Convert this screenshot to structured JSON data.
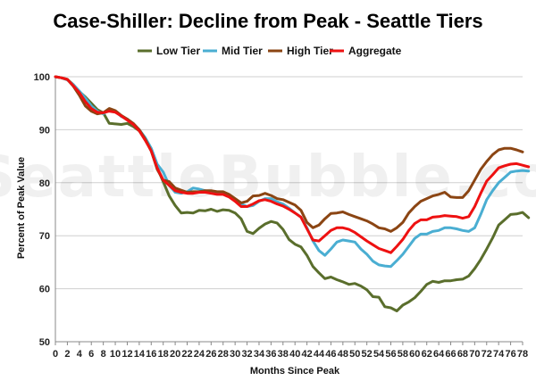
{
  "watermark": "SeattleBubble.com",
  "chart_data": {
    "type": "line",
    "title": "Case-Shiller: Decline from Peak - Seattle Tiers",
    "xlabel": "Months Since Peak",
    "ylabel": "Percent of Peak Value",
    "xlim": [
      0,
      78
    ],
    "ylim": [
      50,
      100
    ],
    "yticks": [
      50,
      60,
      70,
      80,
      90,
      100
    ],
    "xticks": [
      0,
      2,
      4,
      6,
      8,
      10,
      12,
      14,
      16,
      18,
      20,
      22,
      24,
      26,
      28,
      30,
      32,
      34,
      36,
      38,
      40,
      42,
      44,
      46,
      48,
      50,
      52,
      54,
      56,
      58,
      60,
      62,
      64,
      66,
      68,
      70,
      72,
      74,
      76,
      78
    ],
    "grid": "horizontal",
    "legend": "top",
    "series": [
      {
        "name": "Low Tier",
        "color": "#5a6e2c",
        "values": [
          [
            0,
            100
          ],
          [
            1,
            99.8
          ],
          [
            2,
            99.5
          ],
          [
            3,
            98.5
          ],
          [
            4,
            97.2
          ],
          [
            5,
            96.2
          ],
          [
            6,
            95
          ],
          [
            7,
            93.8
          ],
          [
            8,
            93.2
          ],
          [
            9,
            91.2
          ],
          [
            10,
            91.1
          ],
          [
            11,
            91
          ],
          [
            12,
            91.2
          ],
          [
            13,
            90.6
          ],
          [
            14,
            89.8
          ],
          [
            15,
            88.2
          ],
          [
            16,
            86
          ],
          [
            17,
            82.8
          ],
          [
            18,
            80.2
          ],
          [
            19,
            77.5
          ],
          [
            20,
            75.7
          ],
          [
            21,
            74.3
          ],
          [
            22,
            74.4
          ],
          [
            23,
            74.3
          ],
          [
            24,
            74.8
          ],
          [
            25,
            74.7
          ],
          [
            26,
            75
          ],
          [
            27,
            74.6
          ],
          [
            28,
            74.9
          ],
          [
            29,
            74.8
          ],
          [
            30,
            74.3
          ],
          [
            31,
            73.2
          ],
          [
            32,
            70.8
          ],
          [
            33,
            70.4
          ],
          [
            34,
            71.4
          ],
          [
            35,
            72.2
          ],
          [
            36,
            72.7
          ],
          [
            37,
            72.4
          ],
          [
            38,
            71.2
          ],
          [
            39,
            69.3
          ],
          [
            40,
            68.4
          ],
          [
            41,
            67.9
          ],
          [
            42,
            66.3
          ],
          [
            43,
            64.2
          ],
          [
            44,
            63
          ],
          [
            45,
            61.9
          ],
          [
            46,
            62.2
          ],
          [
            47,
            61.7
          ],
          [
            48,
            61.3
          ],
          [
            49,
            60.8
          ],
          [
            50,
            61
          ],
          [
            51,
            60.5
          ],
          [
            52,
            59.8
          ],
          [
            53,
            58.5
          ],
          [
            54,
            58.4
          ],
          [
            55,
            56.6
          ],
          [
            56,
            56.4
          ],
          [
            57,
            55.8
          ],
          [
            58,
            56.9
          ],
          [
            59,
            57.5
          ],
          [
            60,
            58.3
          ],
          [
            61,
            59.5
          ],
          [
            62,
            60.8
          ],
          [
            63,
            61.4
          ],
          [
            64,
            61.2
          ],
          [
            65,
            61.5
          ],
          [
            66,
            61.5
          ],
          [
            67,
            61.7
          ],
          [
            68,
            61.8
          ],
          [
            69,
            62.4
          ],
          [
            70,
            63.8
          ],
          [
            71,
            65.5
          ],
          [
            72,
            67.5
          ],
          [
            73,
            69.6
          ],
          [
            74,
            72
          ],
          [
            75,
            73
          ],
          [
            76,
            74
          ],
          [
            77,
            74.1
          ],
          [
            78,
            74.4
          ],
          [
            79,
            73.4
          ]
        ]
      },
      {
        "name": "Mid Tier",
        "color": "#4aaed2",
        "values": [
          [
            0,
            100
          ],
          [
            1,
            99.8
          ],
          [
            2,
            99.4
          ],
          [
            3,
            98.5
          ],
          [
            4,
            97.3
          ],
          [
            5,
            96
          ],
          [
            6,
            94.5
          ],
          [
            7,
            93.5
          ],
          [
            8,
            93
          ],
          [
            9,
            93.8
          ],
          [
            10,
            93.5
          ],
          [
            11,
            92.5
          ],
          [
            12,
            92
          ],
          [
            13,
            91
          ],
          [
            14,
            90
          ],
          [
            15,
            88.5
          ],
          [
            16,
            86.5
          ],
          [
            17,
            83.5
          ],
          [
            18,
            82
          ],
          [
            19,
            79.5
          ],
          [
            20,
            78.2
          ],
          [
            21,
            78
          ],
          [
            22,
            78.3
          ],
          [
            23,
            79
          ],
          [
            24,
            78.8
          ],
          [
            25,
            78.5
          ],
          [
            26,
            78.3
          ],
          [
            27,
            78.2
          ],
          [
            28,
            78
          ],
          [
            29,
            77.5
          ],
          [
            30,
            76.8
          ],
          [
            31,
            76
          ],
          [
            32,
            75.5
          ],
          [
            33,
            75.7
          ],
          [
            34,
            76.5
          ],
          [
            35,
            77
          ],
          [
            36,
            77
          ],
          [
            37,
            76.4
          ],
          [
            38,
            76
          ],
          [
            39,
            75.2
          ],
          [
            40,
            74.3
          ],
          [
            41,
            73.5
          ],
          [
            42,
            71.5
          ],
          [
            43,
            69
          ],
          [
            44,
            67.2
          ],
          [
            45,
            66.3
          ],
          [
            46,
            67.5
          ],
          [
            47,
            68.8
          ],
          [
            48,
            69.2
          ],
          [
            49,
            69
          ],
          [
            50,
            68.8
          ],
          [
            51,
            67.5
          ],
          [
            52,
            66.5
          ],
          [
            53,
            65.2
          ],
          [
            54,
            64.5
          ],
          [
            55,
            64.3
          ],
          [
            56,
            64.2
          ],
          [
            57,
            65.3
          ],
          [
            58,
            66.5
          ],
          [
            59,
            68
          ],
          [
            60,
            69.5
          ],
          [
            61,
            70.3
          ],
          [
            62,
            70.3
          ],
          [
            63,
            70.8
          ],
          [
            64,
            71
          ],
          [
            65,
            71.5
          ],
          [
            66,
            71.5
          ],
          [
            67,
            71.3
          ],
          [
            68,
            71
          ],
          [
            69,
            70.8
          ],
          [
            70,
            71.5
          ],
          [
            71,
            74
          ],
          [
            72,
            76.8
          ],
          [
            73,
            78.5
          ],
          [
            74,
            80
          ],
          [
            75,
            81
          ],
          [
            76,
            82
          ],
          [
            77,
            82.2
          ],
          [
            78,
            82.3
          ],
          [
            79,
            82.2
          ]
        ]
      },
      {
        "name": "High Tier",
        "color": "#8b4513",
        "values": [
          [
            0,
            100
          ],
          [
            1,
            99.8
          ],
          [
            2,
            99.5
          ],
          [
            3,
            98.2
          ],
          [
            4,
            96.5
          ],
          [
            5,
            94.5
          ],
          [
            6,
            93.5
          ],
          [
            7,
            93
          ],
          [
            8,
            93.2
          ],
          [
            9,
            94
          ],
          [
            10,
            93.6
          ],
          [
            11,
            92.7
          ],
          [
            12,
            92
          ],
          [
            13,
            91.2
          ],
          [
            14,
            90
          ],
          [
            15,
            88.2
          ],
          [
            16,
            86
          ],
          [
            17,
            82.5
          ],
          [
            18,
            80.5
          ],
          [
            19,
            80.2
          ],
          [
            20,
            79
          ],
          [
            21,
            78.6
          ],
          [
            22,
            78.2
          ],
          [
            23,
            78.3
          ],
          [
            24,
            78.3
          ],
          [
            25,
            78.5
          ],
          [
            26,
            78.5
          ],
          [
            27,
            78.3
          ],
          [
            28,
            78.3
          ],
          [
            29,
            77.8
          ],
          [
            30,
            77
          ],
          [
            31,
            76.2
          ],
          [
            32,
            76.5
          ],
          [
            33,
            77.5
          ],
          [
            34,
            77.6
          ],
          [
            35,
            78
          ],
          [
            36,
            77.6
          ],
          [
            37,
            77
          ],
          [
            38,
            76.8
          ],
          [
            39,
            76.3
          ],
          [
            40,
            75.8
          ],
          [
            41,
            74.8
          ],
          [
            42,
            72.5
          ],
          [
            43,
            71.5
          ],
          [
            44,
            72
          ],
          [
            45,
            73.2
          ],
          [
            46,
            74.2
          ],
          [
            47,
            74.3
          ],
          [
            48,
            74.5
          ],
          [
            49,
            74
          ],
          [
            50,
            73.6
          ],
          [
            51,
            73.2
          ],
          [
            52,
            72.8
          ],
          [
            53,
            72.2
          ],
          [
            54,
            71.5
          ],
          [
            55,
            71.3
          ],
          [
            56,
            70.8
          ],
          [
            57,
            71.5
          ],
          [
            58,
            72.5
          ],
          [
            59,
            74.3
          ],
          [
            60,
            75.5
          ],
          [
            61,
            76.5
          ],
          [
            62,
            77
          ],
          [
            63,
            77.5
          ],
          [
            64,
            77.8
          ],
          [
            65,
            78.2
          ],
          [
            66,
            77.3
          ],
          [
            67,
            77.2
          ],
          [
            68,
            77.2
          ],
          [
            69,
            78.5
          ],
          [
            70,
            80.5
          ],
          [
            71,
            82.5
          ],
          [
            72,
            84
          ],
          [
            73,
            85.3
          ],
          [
            74,
            86.2
          ],
          [
            75,
            86.5
          ],
          [
            76,
            86.5
          ],
          [
            77,
            86.2
          ],
          [
            78,
            85.8
          ]
        ]
      },
      {
        "name": "Aggregate",
        "color": "#ee1111",
        "values": [
          [
            0,
            100
          ],
          [
            1,
            99.8
          ],
          [
            2,
            99.5
          ],
          [
            3,
            98.3
          ],
          [
            4,
            97
          ],
          [
            5,
            95.3
          ],
          [
            6,
            94
          ],
          [
            7,
            93.3
          ],
          [
            8,
            93.2
          ],
          [
            9,
            93.5
          ],
          [
            10,
            93.3
          ],
          [
            11,
            92.6
          ],
          [
            12,
            91.8
          ],
          [
            13,
            91
          ],
          [
            14,
            89.8
          ],
          [
            15,
            88
          ],
          [
            16,
            86
          ],
          [
            17,
            82.8
          ],
          [
            18,
            80.5
          ],
          [
            19,
            79.5
          ],
          [
            20,
            78.5
          ],
          [
            21,
            78.2
          ],
          [
            22,
            78
          ],
          [
            23,
            78
          ],
          [
            24,
            78.2
          ],
          [
            25,
            78.2
          ],
          [
            26,
            78
          ],
          [
            27,
            77.8
          ],
          [
            28,
            77.8
          ],
          [
            29,
            77.3
          ],
          [
            30,
            76.5
          ],
          [
            31,
            75.5
          ],
          [
            32,
            75.5
          ],
          [
            33,
            76
          ],
          [
            34,
            76.6
          ],
          [
            35,
            76.8
          ],
          [
            36,
            76.5
          ],
          [
            37,
            76
          ],
          [
            38,
            75.6
          ],
          [
            39,
            75
          ],
          [
            40,
            74.3
          ],
          [
            41,
            73.5
          ],
          [
            42,
            71.3
          ],
          [
            43,
            69.2
          ],
          [
            44,
            69
          ],
          [
            45,
            70
          ],
          [
            46,
            71
          ],
          [
            47,
            71.5
          ],
          [
            48,
            71.5
          ],
          [
            49,
            71.2
          ],
          [
            50,
            70.6
          ],
          [
            51,
            69.8
          ],
          [
            52,
            69
          ],
          [
            53,
            68.3
          ],
          [
            54,
            67.6
          ],
          [
            55,
            67.2
          ],
          [
            56,
            66.8
          ],
          [
            57,
            68
          ],
          [
            58,
            69.3
          ],
          [
            59,
            71
          ],
          [
            60,
            72.3
          ],
          [
            61,
            73
          ],
          [
            62,
            73
          ],
          [
            63,
            73.5
          ],
          [
            64,
            73.6
          ],
          [
            65,
            73.8
          ],
          [
            66,
            73.7
          ],
          [
            67,
            73.6
          ],
          [
            68,
            73.3
          ],
          [
            69,
            73.6
          ],
          [
            70,
            75.5
          ],
          [
            71,
            78
          ],
          [
            72,
            80.3
          ],
          [
            73,
            81.5
          ],
          [
            74,
            82.8
          ],
          [
            75,
            83.2
          ],
          [
            76,
            83.5
          ],
          [
            77,
            83.6
          ],
          [
            78,
            83.3
          ],
          [
            79,
            83
          ]
        ]
      }
    ]
  }
}
